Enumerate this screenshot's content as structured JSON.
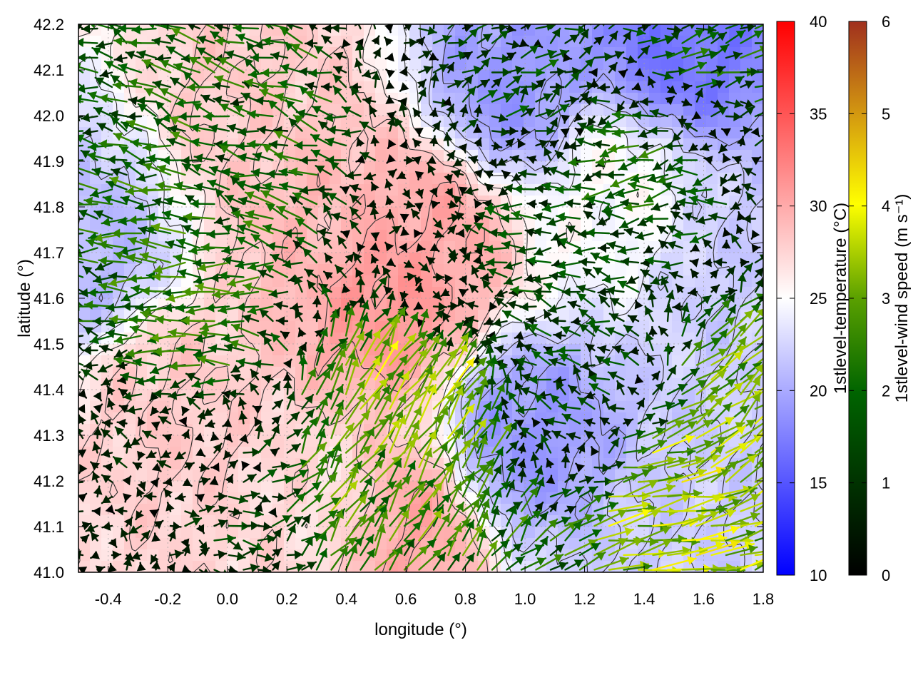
{
  "chart_data": {
    "type": "heatmap",
    "title": "",
    "xlabel": "longitude (°)",
    "ylabel": "latitude (°)",
    "xlim": [
      -0.5,
      1.8
    ],
    "ylim": [
      41.0,
      42.2
    ],
    "x_ticks": [
      "-0.4",
      "-0.2",
      "0.0",
      "0.2",
      "0.4",
      "0.6",
      "0.8",
      "1.0",
      "1.2",
      "1.4",
      "1.6",
      "1.8"
    ],
    "y_ticks": [
      "41.0",
      "41.1",
      "41.2",
      "41.3",
      "41.4",
      "41.5",
      "41.6",
      "41.7",
      "41.8",
      "41.9",
      "42.0",
      "42.1",
      "42.2"
    ],
    "grid": true,
    "layers": [
      {
        "name": "temperature field",
        "kind": "color map with contour lines"
      },
      {
        "name": "wind vectors",
        "kind": "arrows colored by speed"
      }
    ],
    "colorbars": [
      {
        "label": "1stlevel-temperature (°C)",
        "range": [
          10,
          40
        ],
        "ticks": [
          "10",
          "15",
          "20",
          "25",
          "30",
          "35",
          "40"
        ],
        "palette": [
          "#0000ff",
          "#ffffff",
          "#ff0000"
        ]
      },
      {
        "label": "1stlevel-wind speed (m s⁻¹)",
        "range": [
          0,
          6
        ],
        "ticks": [
          "0",
          "1",
          "2",
          "3",
          "4",
          "5",
          "6"
        ],
        "palette": [
          "#000000",
          "#006400",
          "#5aa000",
          "#ffff00",
          "#d49a10",
          "#a0301e"
        ]
      }
    ],
    "temperature_regions": [
      {
        "lon": 0.55,
        "lat": 41.6,
        "temp": 31
      },
      {
        "lon": 0.3,
        "lat": 41.8,
        "temp": 29
      },
      {
        "lon": 0.7,
        "lat": 41.75,
        "temp": 30
      },
      {
        "lon": 0.6,
        "lat": 41.1,
        "temp": 30
      },
      {
        "lon": -0.2,
        "lat": 41.4,
        "temp": 28
      },
      {
        "lon": 0.1,
        "lat": 42.0,
        "temp": 28
      },
      {
        "lon": 1.5,
        "lat": 42.15,
        "temp": 17
      },
      {
        "lon": 0.95,
        "lat": 42.05,
        "temp": 19
      },
      {
        "lon": 1.0,
        "lat": 41.3,
        "temp": 19
      },
      {
        "lon": -0.45,
        "lat": 41.7,
        "temp": 21
      },
      {
        "lon": 1.5,
        "lat": 41.05,
        "temp": 22
      },
      {
        "lon": 1.75,
        "lat": 41.65,
        "temp": 22
      },
      {
        "lon": 0.35,
        "lat": 41.15,
        "temp": 27
      },
      {
        "lon": 1.3,
        "lat": 41.85,
        "temp": 25
      }
    ],
    "wind_regions": [
      {
        "lon": -0.1,
        "lat": 41.6,
        "u": -2.3,
        "v": 0.0
      },
      {
        "lon": 0.1,
        "lat": 41.9,
        "u": -1.8,
        "v": 0.6
      },
      {
        "lon": 0.7,
        "lat": 41.7,
        "u": 0.2,
        "v": 0.0
      },
      {
        "lon": 0.6,
        "lat": 41.35,
        "u": 1.8,
        "v": 2.8
      },
      {
        "lon": 0.45,
        "lat": 41.15,
        "u": 1.5,
        "v": 2.0
      },
      {
        "lon": 1.5,
        "lat": 41.15,
        "u": 3.4,
        "v": 0.6
      },
      {
        "lon": 1.7,
        "lat": 41.3,
        "u": 2.5,
        "v": 2.0
      },
      {
        "lon": 1.0,
        "lat": 41.7,
        "u": -1.5,
        "v": 0.2
      },
      {
        "lon": 1.4,
        "lat": 41.9,
        "u": -1.8,
        "v": -0.3
      },
      {
        "lon": 1.0,
        "lat": 42.1,
        "u": 1.2,
        "v": 0.5
      },
      {
        "lon": 1.6,
        "lat": 42.15,
        "u": 1.8,
        "v": 0.4
      },
      {
        "lon": -0.3,
        "lat": 41.2,
        "u": -0.3,
        "v": 0.2
      },
      {
        "lon": 0.0,
        "lat": 41.05,
        "u": 1.0,
        "v": 0.0
      },
      {
        "lon": 1.2,
        "lat": 41.45,
        "u": -1.2,
        "v": 0.5
      }
    ]
  }
}
